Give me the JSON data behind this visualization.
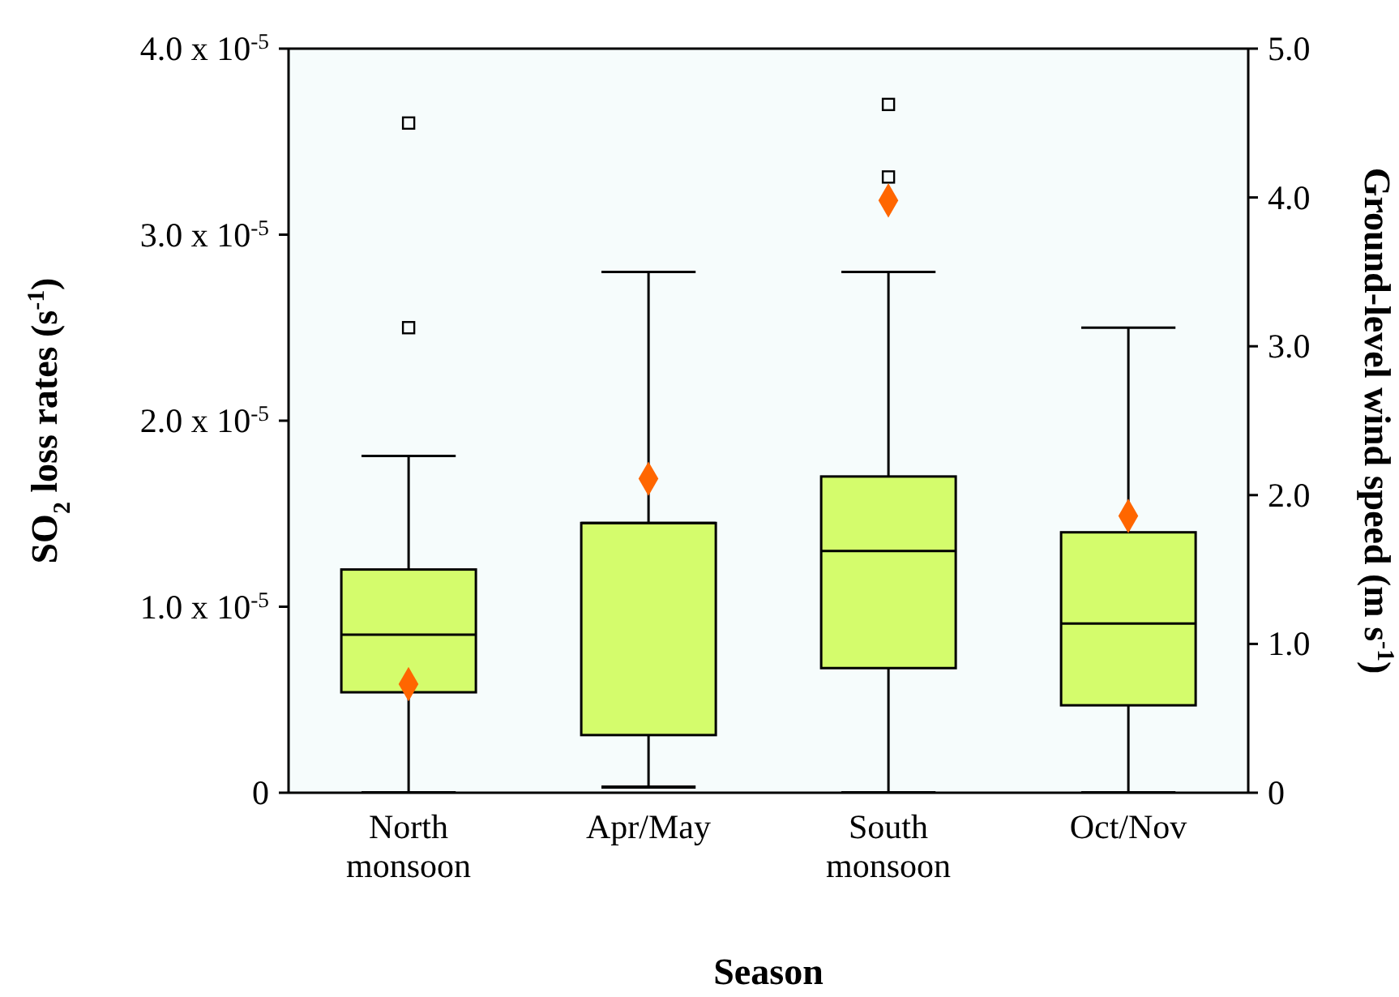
{
  "chart_data": {
    "type": "box",
    "xlabel": "Season",
    "ylabel": "SO$_{2}$ loss rates (s$^{-1}$)",
    "y2label": "Ground-level wind speed (m s$^{-1}$)",
    "categories": [
      "North monsoon",
      "Apr/May",
      "South monsoon",
      "Oct/Nov"
    ],
    "ylim": [
      0,
      4e-05
    ],
    "yticks": [
      {
        "value": 0,
        "label": "0"
      },
      {
        "value": 1e-05,
        "label": "1.0 x 10$^{-5}$"
      },
      {
        "value": 2e-05,
        "label": "2.0 x 10$^{-5}$"
      },
      {
        "value": 3e-05,
        "label": "3.0 x 10$^{-5}$"
      },
      {
        "value": 4e-05,
        "label": "4.0 x 10$^{-5}$"
      }
    ],
    "y2lim": [
      0,
      5
    ],
    "y2ticks": [
      {
        "value": 0,
        "label": "0"
      },
      {
        "value": 1,
        "label": "1.0"
      },
      {
        "value": 2,
        "label": "2.0"
      },
      {
        "value": 3,
        "label": "3.0"
      },
      {
        "value": 4,
        "label": "4.0"
      },
      {
        "value": 5,
        "label": "5.0"
      }
    ],
    "series": [
      {
        "color": "#d4fc6c",
        "boxes": [
          {
            "low": 0,
            "q1": 5.4e-06,
            "median": 8.5e-06,
            "q3": 1.2e-05,
            "high": 1.81e-05,
            "outliers": [
              3.6e-05,
              2.5e-05
            ]
          },
          {
            "low": 3e-07,
            "q1": 3.1e-06,
            "median": 1.45e-05,
            "q3": 1.45e-05,
            "high": 2.8e-05
          },
          {
            "low": 0,
            "q1": 6.7e-06,
            "median": 1.3e-05,
            "q3": 1.7e-05,
            "high": 2.8e-05,
            "outliers": [
              3.7e-05,
              3.31e-05
            ]
          },
          {
            "low": 0,
            "q1": 4.7e-06,
            "median": 9.1e-06,
            "q3": 1.4e-05,
            "high": 2.5e-05
          }
        ]
      },
      {
        "type": "scatter",
        "axis": "y2",
        "color": "#ff6600",
        "marker": "diamond",
        "x": [
          "North monsoon",
          "Apr/May",
          "South monsoon",
          "Oct/Nov"
        ],
        "values": [
          0.73,
          2.11,
          3.98,
          1.86
        ]
      }
    ],
    "grid": false
  }
}
